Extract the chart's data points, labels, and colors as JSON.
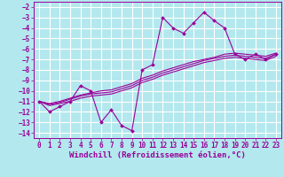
{
  "background_color": "#b3e8ee",
  "grid_color": "#ffffff",
  "line_color": "#990099",
  "marker_color": "#990099",
  "xlabel": "Windchill (Refroidissement éolien,°C)",
  "xlim": [
    -0.5,
    23.5
  ],
  "ylim": [
    -14.5,
    -1.5
  ],
  "xticks": [
    0,
    1,
    2,
    3,
    4,
    5,
    6,
    7,
    8,
    9,
    10,
    11,
    12,
    13,
    14,
    15,
    16,
    17,
    18,
    19,
    20,
    21,
    22,
    23
  ],
  "yticks": [
    -14,
    -13,
    -12,
    -11,
    -10,
    -9,
    -8,
    -7,
    -6,
    -5,
    -4,
    -3,
    -2
  ],
  "series1_x": [
    0,
    1,
    2,
    3,
    4,
    5,
    6,
    7,
    8,
    9,
    10,
    11,
    12,
    13,
    14,
    15,
    16,
    17,
    18,
    19,
    20,
    21,
    22,
    23
  ],
  "series1_y": [
    -11,
    -12,
    -11.5,
    -11,
    -9.5,
    -10,
    -13,
    -11.8,
    -13.3,
    -13.8,
    -8,
    -7.5,
    -3,
    -4,
    -4.5,
    -3.5,
    -2.5,
    -3.3,
    -4,
    -6.5,
    -7,
    -6.5,
    -7,
    -6.5
  ],
  "series2_x": [
    0,
    1,
    2,
    3,
    4,
    5,
    6,
    7,
    8,
    9,
    10,
    11,
    12,
    13,
    14,
    15,
    16,
    17,
    18,
    19,
    20,
    21,
    22,
    23
  ],
  "series2_y": [
    -11,
    -11.3,
    -11.1,
    -10.8,
    -10.5,
    -10.3,
    -10.2,
    -10.1,
    -9.8,
    -9.5,
    -9.0,
    -8.7,
    -8.3,
    -8.0,
    -7.7,
    -7.4,
    -7.1,
    -6.9,
    -6.7,
    -6.6,
    -6.7,
    -6.8,
    -6.9,
    -6.5
  ],
  "series3_x": [
    0,
    1,
    2,
    3,
    4,
    5,
    6,
    7,
    8,
    9,
    10,
    11,
    12,
    13,
    14,
    15,
    16,
    17,
    18,
    19,
    20,
    21,
    22,
    23
  ],
  "series3_y": [
    -11,
    -11.2,
    -11.0,
    -10.7,
    -10.4,
    -10.2,
    -10.0,
    -9.9,
    -9.6,
    -9.3,
    -8.8,
    -8.5,
    -8.1,
    -7.8,
    -7.5,
    -7.2,
    -7.0,
    -6.8,
    -6.5,
    -6.4,
    -6.5,
    -6.6,
    -6.7,
    -6.4
  ],
  "series4_x": [
    0,
    1,
    2,
    3,
    4,
    5,
    6,
    7,
    8,
    9,
    10,
    11,
    12,
    13,
    14,
    15,
    16,
    17,
    18,
    19,
    20,
    21,
    22,
    23
  ],
  "series4_y": [
    -11,
    -11.4,
    -11.2,
    -11.0,
    -10.7,
    -10.5,
    -10.4,
    -10.3,
    -10.0,
    -9.7,
    -9.2,
    -8.9,
    -8.5,
    -8.2,
    -7.9,
    -7.6,
    -7.3,
    -7.1,
    -6.9,
    -6.8,
    -6.9,
    -7.0,
    -7.1,
    -6.7
  ],
  "font_family": "monospace",
  "xlabel_fontsize": 6.5,
  "tick_fontsize": 5.5
}
